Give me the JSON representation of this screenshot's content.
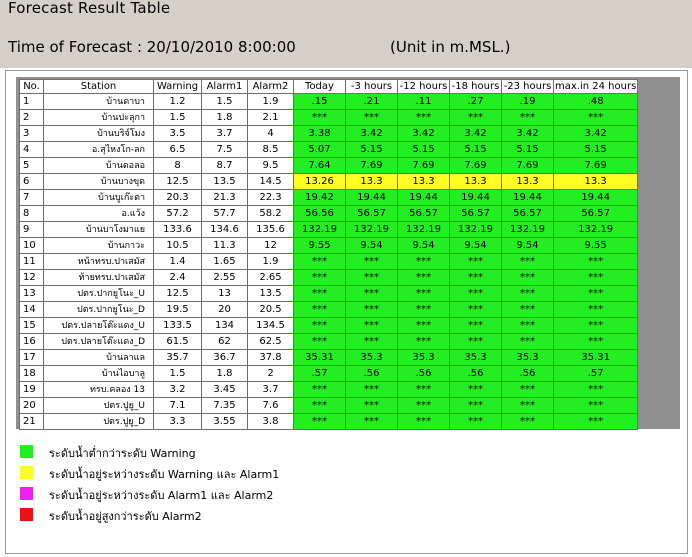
{
  "header": {
    "title": "Forecast Result Table",
    "forecast_time": "Time of Forecast : 20/10/2010 8:00:00",
    "unit_note": "(Unit in m.MSL.)"
  },
  "table": {
    "columns": [
      "No.",
      "Station",
      "Warning",
      "Alarm1",
      "Alarm2",
      "Today",
      "-3 hours",
      "-12 hours",
      "-18 hours",
      "-23 hours",
      "max.in 24 hours"
    ],
    "rows": [
      {
        "cells": [
          "1",
          "บ้านดาบา",
          "1.2",
          "1.5",
          "1.9",
          ".15",
          ".21",
          ".11",
          ".27",
          ".19",
          ".48"
        ],
        "status": "green"
      },
      {
        "cells": [
          "2",
          "บ้านปะลุกา",
          "1.5",
          "1.8",
          "2.1",
          "***",
          "***",
          "***",
          "***",
          "***",
          "***"
        ],
        "status": "green"
      },
      {
        "cells": [
          "3",
          "บ้านบริจ์โมง",
          "3.5",
          "3.7",
          "4",
          "3.38",
          "3.42",
          "3.42",
          "3.42",
          "3.42",
          "3.42"
        ],
        "status": "green"
      },
      {
        "cells": [
          "4",
          "อ.สุไหงโก-ลก",
          "6.5",
          "7.5",
          "8.5",
          "5.07",
          "5.15",
          "5.15",
          "5.15",
          "5.15",
          "5.15"
        ],
        "status": "green"
      },
      {
        "cells": [
          "5",
          "บ้านดอลอ",
          "8",
          "8.7",
          "9.5",
          "7.64",
          "7.69",
          "7.69",
          "7.69",
          "7.69",
          "7.69"
        ],
        "status": "green"
      },
      {
        "cells": [
          "6",
          "บ้านบางขุด",
          "12.5",
          "13.5",
          "14.5",
          "13.26",
          "13.3",
          "13.3",
          "13.3",
          "13.3",
          "13.3"
        ],
        "status": "yellow"
      },
      {
        "cells": [
          "7",
          "บ้านบูเก๊ะตา",
          "20.3",
          "21.3",
          "22.3",
          "19.42",
          "19.44",
          "19.44",
          "19.44",
          "19.44",
          "19.44"
        ],
        "status": "green"
      },
      {
        "cells": [
          "8",
          "อ.แว้ง",
          "57.2",
          "57.7",
          "58.2",
          "56.56",
          "56.57",
          "56.57",
          "56.57",
          "56.57",
          "56.57"
        ],
        "status": "green"
      },
      {
        "cells": [
          "9",
          "บ้านบาโงมาแย",
          "133.6",
          "134.6",
          "135.6",
          "132.19",
          "132.19",
          "132.19",
          "132.19",
          "132.19",
          "132.19"
        ],
        "status": "green"
      },
      {
        "cells": [
          "10",
          "บ้านกาวะ",
          "10.5",
          "11.3",
          "12",
          "9.55",
          "9.54",
          "9.54",
          "9.54",
          "9.54",
          "9.55"
        ],
        "status": "green"
      },
      {
        "cells": [
          "11",
          "หน้าทรบ.ปาเสมัส",
          "1.4",
          "1.65",
          "1.9",
          "***",
          "***",
          "***",
          "***",
          "***",
          "***"
        ],
        "status": "green"
      },
      {
        "cells": [
          "12",
          "ท้ายทรบ.ปาเสมัส",
          "2.4",
          "2.55",
          "2.65",
          "***",
          "***",
          "***",
          "***",
          "***",
          "***"
        ],
        "status": "green"
      },
      {
        "cells": [
          "13",
          "ปตร.ปากยูโนะ_U",
          "12.5",
          "13",
          "13.5",
          "***",
          "***",
          "***",
          "***",
          "***",
          "***"
        ],
        "status": "green"
      },
      {
        "cells": [
          "14",
          "ปตร.ปากยูโนะ_D",
          "19.5",
          "20",
          "20.5",
          "***",
          "***",
          "***",
          "***",
          "***",
          "***"
        ],
        "status": "green"
      },
      {
        "cells": [
          "15",
          "ปตร.ปลายโต๊ะแดง_U",
          "133.5",
          "134",
          "134.5",
          "***",
          "***",
          "***",
          "***",
          "***",
          "***"
        ],
        "status": "green"
      },
      {
        "cells": [
          "16",
          "ปตร.ปลายโต๊ะแดง_D",
          "61.5",
          "62",
          "62.5",
          "***",
          "***",
          "***",
          "***",
          "***",
          "***"
        ],
        "status": "green"
      },
      {
        "cells": [
          "17",
          "บ้านลาแล",
          "35.7",
          "36.7",
          "37.8",
          "35.31",
          "35.3",
          "35.3",
          "35.3",
          "35.3",
          "35.31"
        ],
        "status": "green"
      },
      {
        "cells": [
          "18",
          "บ้านไอบาลู",
          "1.5",
          "1.8",
          "2",
          ".57",
          ".56",
          ".56",
          ".56",
          ".56",
          ".57"
        ],
        "status": "green"
      },
      {
        "cells": [
          "19",
          "ทรบ.คลอง 13",
          "3.2",
          "3.45",
          "3.7",
          "***",
          "***",
          "***",
          "***",
          "***",
          "***"
        ],
        "status": "green"
      },
      {
        "cells": [
          "20",
          "ปตร.ปูยู_U",
          "7.1",
          "7.35",
          "7.6",
          "***",
          "***",
          "***",
          "***",
          "***",
          "***"
        ],
        "status": "green"
      },
      {
        "cells": [
          "21",
          "ปตร.ปูยู_D",
          "3.3",
          "3.55",
          "3.8",
          "***",
          "***",
          "***",
          "***",
          "***",
          "***"
        ],
        "status": "green"
      }
    ]
  },
  "status_colors": {
    "green": "#22ee22",
    "yellow": "#ffff22",
    "magenta": "#ee22ee",
    "red": "#ee1111"
  },
  "legend": [
    {
      "label": "ระดับน้ำต่ำกว่าระดับ Warning",
      "color": "#22ee22",
      "status": "green"
    },
    {
      "label": "ระดับน้ำอยู่ระหว่างระดับ Warning และ Alarm1",
      "color": "#ffff22",
      "status": "yellow"
    },
    {
      "label": "ระดับน้ำอยู่ระหว่างระดับ Alarm1 และ Alarm2",
      "color": "#ee22ee",
      "status": "magenta"
    },
    {
      "label": "ระดับน้ำอยู่สูงกว่าระดับ Alarm2",
      "color": "#ee1111",
      "status": "red"
    }
  ]
}
